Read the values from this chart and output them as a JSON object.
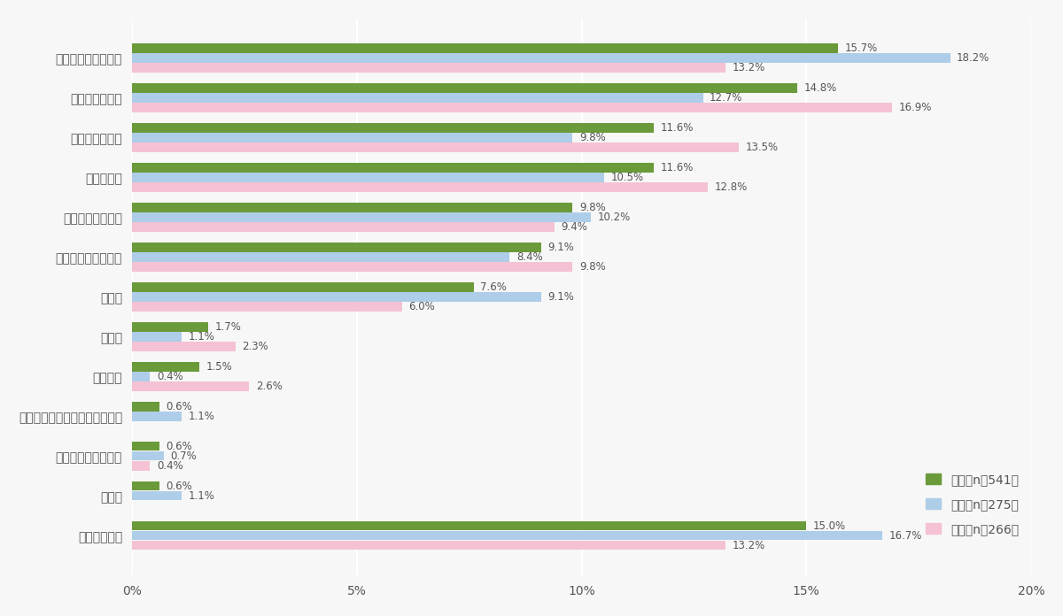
{
  "categories": [
    "家族や親戚との関係",
    "旅行やレジャー",
    "趣味や自己團発",
    "仕事や学業",
    "健康など身体状況",
    "友人や恋人との関係",
    "金錠面",
    "食事面",
    "購買行動",
    "競技会や大会・展示会への参加",
    "美容やファッション",
    "その他",
    "何もなかった"
  ],
  "series_zenntai": [
    15.7,
    14.8,
    11.6,
    11.6,
    9.8,
    9.1,
    7.6,
    1.7,
    1.5,
    0.6,
    0.6,
    0.6,
    15.0
  ],
  "series_dansei": [
    18.2,
    12.7,
    9.8,
    10.5,
    10.2,
    8.4,
    9.1,
    1.1,
    0.4,
    1.1,
    0.7,
    1.1,
    16.7
  ],
  "series_josei": [
    13.2,
    16.9,
    13.5,
    12.8,
    9.4,
    9.8,
    6.0,
    2.3,
    2.6,
    0.0,
    0.4,
    0.0,
    13.2
  ],
  "color_zentai": "#6a9a3a",
  "color_dansei": "#aecde8",
  "color_josei": "#f4c2d4",
  "legend_zentai": "全体（n＝541）",
  "legend_dansei": "男性（n＝275）",
  "legend_josei": "女性（n＝266）",
  "xlim": [
    0,
    20
  ],
  "xtick_vals": [
    0,
    5,
    10,
    15,
    20
  ],
  "xtick_labels": [
    "0%",
    "5%",
    "10%",
    "15%",
    "20%"
  ],
  "background_color": "#f7f7f7",
  "bar_height": 0.23,
  "label_fontsize": 8.5,
  "tick_fontsize": 10,
  "legend_fontsize": 10
}
